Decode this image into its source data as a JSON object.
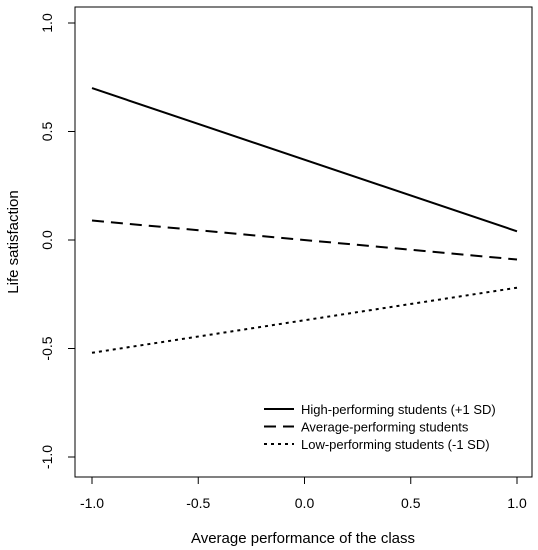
{
  "chart_data": {
    "type": "line",
    "title": "",
    "xlabel": "Average performance of the class",
    "ylabel": "Life satisfaction",
    "xlim": [
      -1.0,
      1.0
    ],
    "ylim": [
      -1.0,
      1.0
    ],
    "x_ticks": [
      -1.0,
      -0.5,
      0.0,
      0.5,
      1.0
    ],
    "x_tick_labels": [
      "-1.0",
      "-0.5",
      "0.0",
      "0.5",
      "1.0"
    ],
    "y_ticks": [
      -1.0,
      -0.5,
      0.0,
      0.5,
      1.0
    ],
    "y_tick_labels": [
      "-1.0",
      "-0.5",
      "0.0",
      "0.5",
      "1.0"
    ],
    "grid": false,
    "legend_position": "bottom-right",
    "series": [
      {
        "name": "High-performing students (+1 SD)",
        "style": "solid",
        "x": [
          -1.0,
          1.0
        ],
        "y": [
          0.7,
          0.04
        ]
      },
      {
        "name": "Average-performing students",
        "style": "dashed",
        "x": [
          -1.0,
          1.0
        ],
        "y": [
          0.09,
          -0.09
        ]
      },
      {
        "name": "Low-performing students (-1 SD)",
        "style": "dotted",
        "x": [
          -1.0,
          1.0
        ],
        "y": [
          -0.52,
          -0.22
        ]
      }
    ],
    "colors": {
      "line": "#000000",
      "background": "#ffffff"
    }
  }
}
